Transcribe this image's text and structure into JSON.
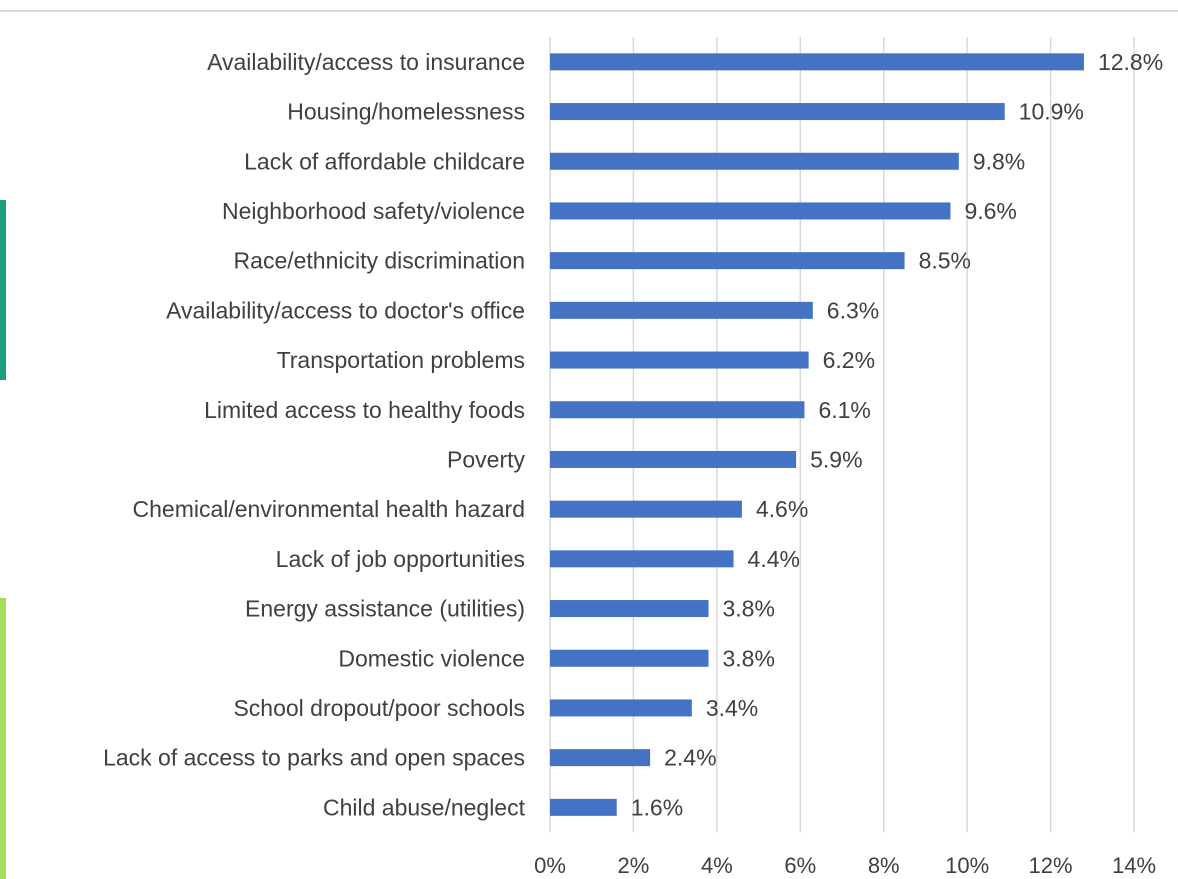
{
  "page": {
    "accent_colors": [
      "#1a9e7d",
      "#a5dc5a"
    ]
  },
  "chart_data": {
    "type": "bar",
    "orientation": "horizontal",
    "title": "",
    "xlabel": "",
    "ylabel": "",
    "categories": [
      "Availability/access to insurance",
      "Housing/homelessness",
      "Lack of affordable childcare",
      "Neighborhood safety/violence",
      "Race/ethnicity discrimination",
      "Availability/access to doctor's office",
      "Transportation problems",
      "Limited access to healthy foods",
      "Poverty",
      "Chemical/environmental health hazard",
      "Lack of job opportunities",
      "Energy assistance (utilities)",
      "Domestic violence",
      "School dropout/poor schools",
      "Lack of access to parks and open spaces",
      "Child abuse/neglect"
    ],
    "values": [
      12.8,
      10.9,
      9.8,
      9.6,
      8.5,
      6.3,
      6.2,
      6.1,
      5.9,
      4.6,
      4.4,
      3.8,
      3.8,
      3.4,
      2.4,
      1.6
    ],
    "value_labels": [
      "12.8%",
      "10.9%",
      "9.8%",
      "9.6%",
      "8.5%",
      "6.3%",
      "6.2%",
      "6.1%",
      "5.9%",
      "4.6%",
      "4.4%",
      "3.8%",
      "3.8%",
      "3.4%",
      "2.4%",
      "1.6%"
    ],
    "xlim": [
      0,
      14
    ],
    "x_ticks": [
      0,
      2,
      4,
      6,
      8,
      10,
      12,
      14
    ],
    "x_tick_labels": [
      "0%",
      "2%",
      "4%",
      "6%",
      "8%",
      "10%",
      "12%",
      "14%"
    ],
    "grid": true,
    "legend": "none",
    "bar_color": "#4472c4",
    "grid_color": "#d9d9d9",
    "text_color": "#404040"
  }
}
